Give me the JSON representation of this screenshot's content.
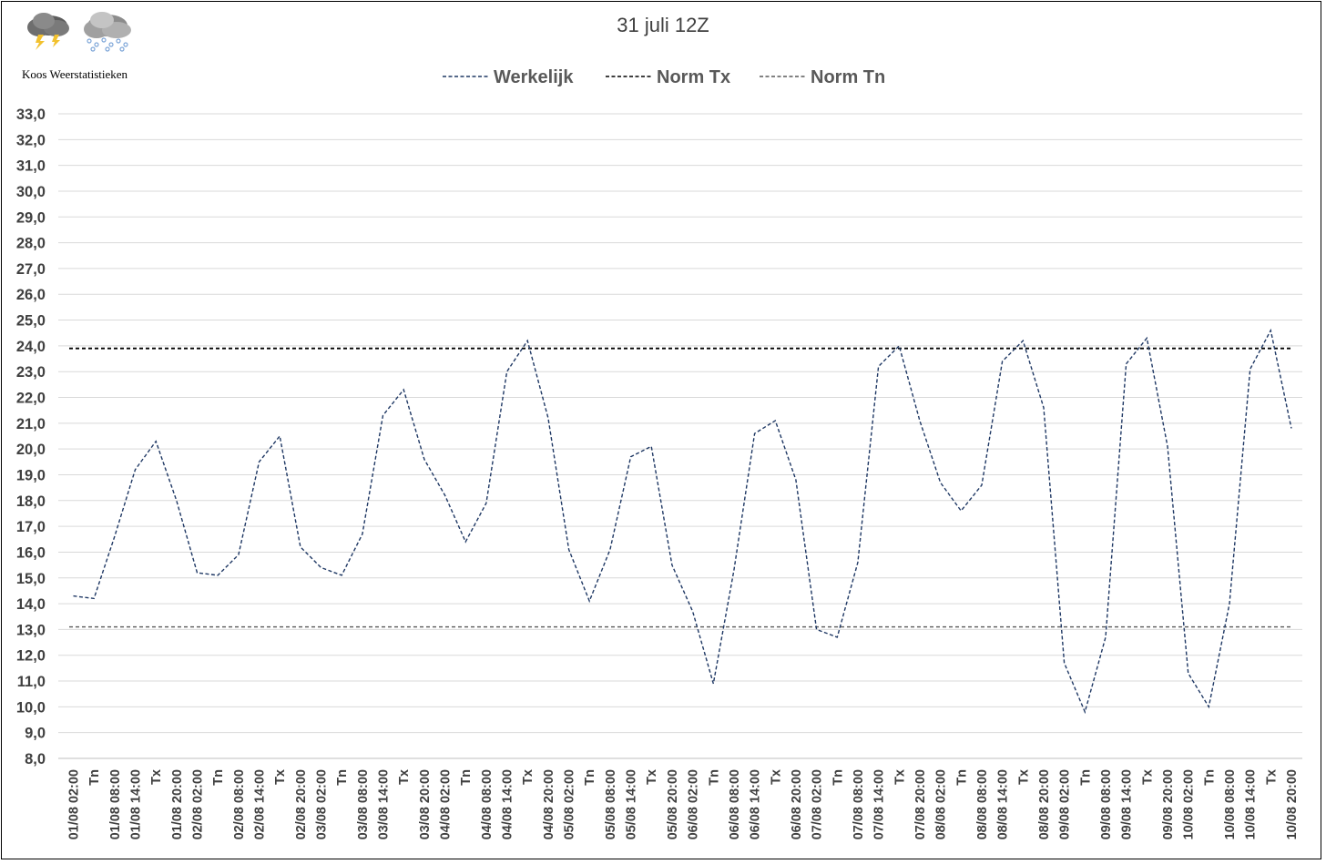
{
  "brand": {
    "name": "Koos Weerstatistieken"
  },
  "icons": [
    "thunderstorm-cloud-icon",
    "snow-cloud-icon"
  ],
  "chart_data": {
    "type": "line",
    "title": "31 juli 12Z",
    "xlabel": "",
    "ylabel": "",
    "ylim": [
      8.0,
      33.0
    ],
    "ytick_step": 1.0,
    "yticks": [
      "8,0",
      "9,0",
      "10,0",
      "11,0",
      "12,0",
      "13,0",
      "14,0",
      "15,0",
      "16,0",
      "17,0",
      "18,0",
      "19,0",
      "20,0",
      "21,0",
      "22,0",
      "23,0",
      "24,0",
      "25,0",
      "26,0",
      "27,0",
      "28,0",
      "29,0",
      "30,0",
      "31,0",
      "32,0",
      "33,0"
    ],
    "grid": true,
    "legend_position": "top",
    "categories": [
      "01/08 02:00",
      "Tn",
      "01/08 08:00",
      "01/08 14:00",
      "Tx",
      "01/08 20:00",
      "02/08 02:00",
      "Tn",
      "02/08 08:00",
      "02/08 14:00",
      "Tx",
      "02/08 20:00",
      "03/08 02:00",
      "Tn",
      "03/08 08:00",
      "03/08 14:00",
      "Tx",
      "03/08 20:00",
      "04/08 02:00",
      "Tn",
      "04/08 08:00",
      "04/08 14:00",
      "Tx",
      "04/08 20:00",
      "05/08 02:00",
      "Tn",
      "05/08 08:00",
      "05/08 14:00",
      "Tx",
      "05/08 20:00",
      "06/08 02:00",
      "Tn",
      "06/08 08:00",
      "06/08 14:00",
      "Tx",
      "06/08 20:00",
      "07/08 02:00",
      "Tn",
      "07/08 08:00",
      "07/08 14:00",
      "Tx",
      "07/08 20:00",
      "08/08 02:00",
      "Tn",
      "08/08 08:00",
      "08/08 14:00",
      "Tx",
      "08/08 20:00",
      "09/08 02:00",
      "Tn",
      "09/08 08:00",
      "09/08 14:00",
      "Tx",
      "09/08 20:00",
      "10/08 02:00",
      "Tn",
      "10/08 08:00",
      "10/08 14:00",
      "Tx",
      "10/08 20:00"
    ],
    "series": [
      {
        "name": "Werkelijk",
        "color": "#1f3864",
        "style": "dashed",
        "values": [
          14.3,
          14.2,
          16.6,
          19.2,
          20.3,
          18.0,
          15.2,
          15.1,
          15.9,
          19.5,
          20.5,
          16.2,
          15.4,
          15.1,
          16.7,
          21.3,
          22.3,
          19.6,
          18.2,
          16.4,
          17.9,
          23.0,
          24.2,
          21.2,
          16.1,
          14.1,
          16.1,
          19.7,
          20.1,
          15.5,
          13.7,
          10.9,
          15.3,
          20.6,
          21.1,
          18.8,
          13.0,
          12.7,
          15.6,
          23.2,
          24.0,
          21.1,
          18.7,
          17.6,
          18.6,
          23.4,
          24.2,
          21.6,
          11.7,
          9.8,
          12.7,
          23.3,
          24.3,
          20.1,
          11.3,
          10.0,
          14.0,
          23.1,
          24.6,
          20.8
        ]
      },
      {
        "name": "Norm Tx",
        "color": "#000000",
        "style": "dashed",
        "constant": 23.9
      },
      {
        "name": "Norm Tn",
        "color": "#595959",
        "style": "dashed",
        "constant": 13.1
      }
    ]
  }
}
